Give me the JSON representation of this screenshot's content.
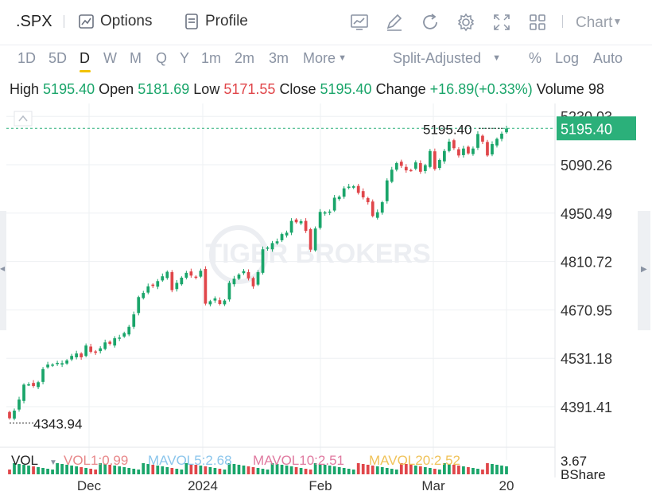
{
  "header": {
    "symbol": ".SPX",
    "options_label": "Options",
    "profile_label": "Profile",
    "chart_label": "Chart",
    "icons": [
      "chart-analysis-icon",
      "draw-icon",
      "refresh-icon",
      "settings-icon",
      "fullscreen-icon",
      "layout-grid-icon"
    ]
  },
  "timeframes": {
    "items": [
      "1D",
      "5D",
      "D",
      "W",
      "M",
      "Q",
      "Y",
      "1m",
      "2m",
      "3m",
      "More"
    ],
    "active": "D",
    "adjust": "Split-Adjusted",
    "percent": "%",
    "log": "Log",
    "auto": "Auto"
  },
  "quote": {
    "high_label": "High",
    "high": "5195.40",
    "open_label": "Open",
    "open": "5181.69",
    "low_label": "Low",
    "low": "5171.55",
    "close_label": "Close",
    "close": "5195.40",
    "change_label": "Change",
    "change": "+16.89(+0.33%)",
    "volume_label": "Volume",
    "volume": "98"
  },
  "chart_data": {
    "type": "candlestick",
    "y_ticks": [
      "5230.03",
      "5090.26",
      "4950.49",
      "4810.72",
      "4670.95",
      "4531.18",
      "4391.41"
    ],
    "y_range": [
      4330,
      5235
    ],
    "x_labels": [
      "Dec",
      "2024",
      "Feb",
      "Mar",
      "20"
    ],
    "last_price": "5195.40",
    "marker_high": "5195.40",
    "marker_low": "4343.94",
    "closes": [
      4358,
      4380,
      4412,
      4455,
      4456,
      4451,
      4462,
      4500,
      4513,
      4513,
      4518,
      4517,
      4525,
      4538,
      4545,
      4534,
      4568,
      4550,
      4547,
      4560,
      4577,
      4573,
      4589,
      4591,
      4604,
      4622,
      4658,
      4708,
      4720,
      4739,
      4740,
      4754,
      4768,
      4781,
      4728,
      4749,
      4764,
      4778,
      4770,
      4766,
      4784,
      4689,
      4696,
      4704,
      4688,
      4698,
      4749,
      4761,
      4773,
      4783,
      4762,
      4739,
      4780,
      4846,
      4851,
      4864,
      4869,
      4890,
      4894,
      4928,
      4924,
      4927,
      4899,
      4845,
      4906,
      4954,
      4953,
      4955,
      4995,
      4998,
      5022,
      5027,
      5028,
      5009,
      4996,
      4982,
      4942,
      4953,
      4982,
      5045,
      5076,
      5095,
      5087,
      5074,
      5074,
      5097,
      5070,
      5089,
      5130,
      5078,
      5104,
      5130,
      5157,
      5138,
      5117,
      5137,
      5123,
      5137,
      5179,
      5157,
      5117,
      5150,
      5165,
      5180,
      5195
    ],
    "volume_panel": {
      "label": "VOL",
      "vol1": "VOL1:0.99",
      "mavol5": "MAVOL5:2.68",
      "mavol10": "MAVOL10:2.51",
      "mavol20": "MAVOL20:2.52",
      "axis_value": "3.67",
      "axis_unit": "BShare"
    },
    "watermark": "TIGER BROKERS",
    "colors": {
      "up": "#1aa56a",
      "down": "#e0464a",
      "grid": "#eef0f3",
      "dashed": "#2bb07a"
    }
  }
}
